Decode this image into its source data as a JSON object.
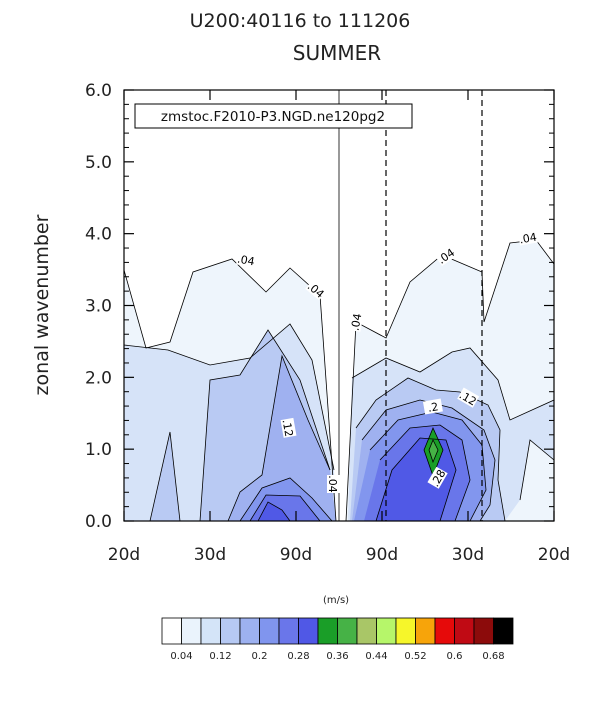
{
  "chart_data": {
    "type": "contour",
    "title_line1": "U200:40116 to 111206",
    "title_line2": "SUMMER",
    "annotation": "zmstoc.F2010-P3.NGD.ne120pg2",
    "ylabel": "zonal wavenumber",
    "ylim": [
      0,
      6
    ],
    "y_ticks": [
      "0.0",
      "1.0",
      "2.0",
      "3.0",
      "4.0",
      "5.0",
      "6.0"
    ],
    "x_ticks": [
      "20d",
      "30d",
      "90d",
      "90d",
      "30d",
      "20d"
    ],
    "contour_labels": [
      ".04",
      ".04",
      ".04",
      ".04",
      ".04",
      ".12",
      ".04",
      ".12",
      ".2",
      ".28"
    ],
    "colorbar": {
      "units": "(m/s)",
      "labels": [
        "0.04",
        "0.12",
        "0.2",
        "0.28",
        "0.36",
        "0.44",
        "0.52",
        "0.6",
        "0.68"
      ],
      "colors": [
        "#ffffff",
        "#eaf3fc",
        "#d4e4f8",
        "#b6c9f3",
        "#9db1f0",
        "#8095ee",
        "#6a76ea",
        "#5058e6",
        "#1a9e28",
        "#46b246",
        "#a9c667",
        "#b6f66a",
        "#f6f62a",
        "#f7a40a",
        "#e60a0a",
        "#c00a14",
        "#8c0b0b",
        "#000000"
      ]
    },
    "fill_colors": {
      "level1": "#eef5fc",
      "level2": "#d6e3f8",
      "level3": "#b9caf3",
      "level4": "#9fb1f0",
      "level5": "#8296ee",
      "level6": "#6976ea",
      "level7": "#5059e6",
      "level8": "#1a9e28"
    }
  }
}
